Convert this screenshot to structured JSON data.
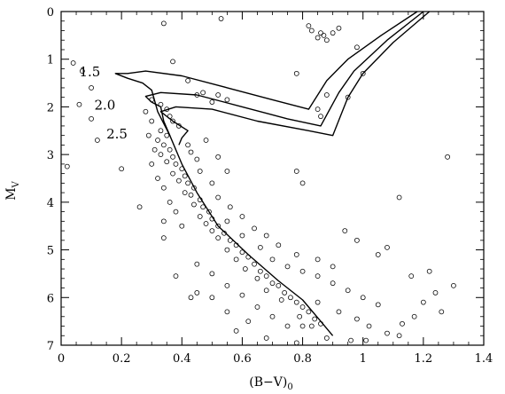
{
  "chart_data": {
    "type": "scatter",
    "title": "",
    "xlabel": "(B−V)",
    "xlabel_subscript": "0",
    "ylabel": "M",
    "ylabel_subscript": "V",
    "xlim": [
      0,
      1.4
    ],
    "ylim": [
      7,
      0
    ],
    "y_inverted": true,
    "grid": false,
    "x_ticks": [
      0,
      0.2,
      0.4,
      0.6,
      0.8,
      1,
      1.2,
      1.4
    ],
    "x_tick_labels": [
      "0",
      "0.2",
      "0.4",
      "0.6",
      "0.8",
      "1",
      "1.2",
      "1.4"
    ],
    "y_ticks": [
      0,
      1,
      2,
      3,
      4,
      5,
      6,
      7
    ],
    "y_tick_labels": [
      "0",
      "1",
      "2",
      "3",
      "4",
      "5",
      "6",
      "7"
    ],
    "isochrones": [
      {
        "label": "1.5",
        "points": [
          [
            1.18,
            0
          ],
          [
            1.06,
            0.5
          ],
          [
            0.95,
            1.0
          ],
          [
            0.88,
            1.45
          ],
          [
            0.82,
            2.05
          ],
          [
            0.7,
            1.85
          ],
          [
            0.55,
            1.6
          ],
          [
            0.4,
            1.35
          ],
          [
            0.28,
            1.25
          ],
          [
            0.22,
            1.3
          ],
          [
            0.18,
            1.3
          ],
          [
            0.22,
            1.4
          ],
          [
            0.27,
            1.5
          ],
          [
            0.3,
            1.65
          ],
          [
            0.32,
            2.1
          ],
          [
            0.36,
            2.6
          ],
          [
            0.4,
            3.2
          ],
          [
            0.45,
            3.8
          ],
          [
            0.52,
            4.5
          ],
          [
            0.62,
            5.1
          ],
          [
            0.72,
            5.65
          ],
          [
            0.8,
            6.05
          ],
          [
            0.86,
            6.5
          ],
          [
            0.9,
            6.8
          ]
        ]
      },
      {
        "label": "2.0",
        "points": [
          [
            1.2,
            0
          ],
          [
            1.08,
            0.6
          ],
          [
            0.97,
            1.25
          ],
          [
            0.92,
            1.7
          ],
          [
            0.86,
            2.4
          ],
          [
            0.75,
            2.25
          ],
          [
            0.6,
            2.0
          ],
          [
            0.45,
            1.75
          ],
          [
            0.33,
            1.7
          ],
          [
            0.28,
            1.78
          ],
          [
            0.3,
            1.9
          ],
          [
            0.33,
            2.0
          ],
          [
            0.34,
            2.3
          ],
          [
            0.36,
            2.6
          ]
        ]
      },
      {
        "label": "2.5",
        "points": [
          [
            1.22,
            0
          ],
          [
            1.1,
            0.65
          ],
          [
            1.0,
            1.3
          ],
          [
            0.95,
            1.8
          ],
          [
            0.9,
            2.6
          ],
          [
            0.82,
            2.5
          ],
          [
            0.65,
            2.3
          ],
          [
            0.5,
            2.05
          ],
          [
            0.38,
            2.0
          ],
          [
            0.33,
            2.1
          ],
          [
            0.37,
            2.3
          ],
          [
            0.42,
            2.5
          ],
          [
            0.4,
            2.65
          ],
          [
            0.39,
            2.8
          ]
        ]
      }
    ],
    "series": [
      {
        "values": [
          [
            0.04,
            1.08
          ],
          [
            0.07,
            1.25
          ],
          [
            0.1,
            1.6
          ],
          [
            0.06,
            1.95
          ],
          [
            0.1,
            2.25
          ],
          [
            0.12,
            2.7
          ],
          [
            0.02,
            3.25
          ],
          [
            0.2,
            3.3
          ],
          [
            0.26,
            4.1
          ],
          [
            0.34,
            4.4
          ],
          [
            0.34,
            4.75
          ],
          [
            0.38,
            5.55
          ],
          [
            0.43,
            6.0
          ],
          [
            0.37,
            1.05
          ],
          [
            0.42,
            1.45
          ],
          [
            0.45,
            1.75
          ],
          [
            0.3,
            1.85
          ],
          [
            0.33,
            1.95
          ],
          [
            0.35,
            2.05
          ],
          [
            0.36,
            2.2
          ],
          [
            0.37,
            2.3
          ],
          [
            0.39,
            2.4
          ],
          [
            0.33,
            2.5
          ],
          [
            0.35,
            2.6
          ],
          [
            0.32,
            2.7
          ],
          [
            0.34,
            2.8
          ],
          [
            0.36,
            2.9
          ],
          [
            0.33,
            3.0
          ],
          [
            0.37,
            3.05
          ],
          [
            0.35,
            3.15
          ],
          [
            0.38,
            3.2
          ],
          [
            0.4,
            3.3
          ],
          [
            0.37,
            3.4
          ],
          [
            0.41,
            3.45
          ],
          [
            0.39,
            3.55
          ],
          [
            0.42,
            3.6
          ],
          [
            0.44,
            3.7
          ],
          [
            0.41,
            3.8
          ],
          [
            0.43,
            3.85
          ],
          [
            0.46,
            3.95
          ],
          [
            0.44,
            4.05
          ],
          [
            0.47,
            4.1
          ],
          [
            0.49,
            4.2
          ],
          [
            0.46,
            4.3
          ],
          [
            0.5,
            4.35
          ],
          [
            0.48,
            4.45
          ],
          [
            0.52,
            4.5
          ],
          [
            0.5,
            4.6
          ],
          [
            0.54,
            4.65
          ],
          [
            0.52,
            4.75
          ],
          [
            0.56,
            4.8
          ],
          [
            0.58,
            4.9
          ],
          [
            0.55,
            5.0
          ],
          [
            0.6,
            5.05
          ],
          [
            0.62,
            5.15
          ],
          [
            0.58,
            5.2
          ],
          [
            0.64,
            5.3
          ],
          [
            0.61,
            5.4
          ],
          [
            0.66,
            5.45
          ],
          [
            0.68,
            5.55
          ],
          [
            0.65,
            5.6
          ],
          [
            0.7,
            5.7
          ],
          [
            0.72,
            5.75
          ],
          [
            0.68,
            5.85
          ],
          [
            0.74,
            5.9
          ],
          [
            0.76,
            6.0
          ],
          [
            0.73,
            6.05
          ],
          [
            0.78,
            6.1
          ],
          [
            0.8,
            6.2
          ],
          [
            0.82,
            6.3
          ],
          [
            0.79,
            6.4
          ],
          [
            0.84,
            6.45
          ],
          [
            0.86,
            6.55
          ],
          [
            0.83,
            6.6
          ],
          [
            0.55,
            4.4
          ],
          [
            0.6,
            4.7
          ],
          [
            0.66,
            4.95
          ],
          [
            0.7,
            5.2
          ],
          [
            0.75,
            5.35
          ],
          [
            0.8,
            5.45
          ],
          [
            0.85,
            5.55
          ],
          [
            0.9,
            5.7
          ],
          [
            0.95,
            5.85
          ],
          [
            1.0,
            6.0
          ],
          [
            1.05,
            6.15
          ],
          [
            0.92,
            6.3
          ],
          [
            0.98,
            6.45
          ],
          [
            1.02,
            6.6
          ],
          [
            1.08,
            6.75
          ],
          [
            0.96,
            6.9
          ],
          [
            0.45,
            5.3
          ],
          [
            0.5,
            5.5
          ],
          [
            0.55,
            5.75
          ],
          [
            0.6,
            5.95
          ],
          [
            0.65,
            6.2
          ],
          [
            0.7,
            6.4
          ],
          [
            0.75,
            6.6
          ],
          [
            0.62,
            6.5
          ],
          [
            0.55,
            6.3
          ],
          [
            0.5,
            6.0
          ],
          [
            0.45,
            5.9
          ],
          [
            0.58,
            6.7
          ],
          [
            0.68,
            6.85
          ],
          [
            0.78,
            6.95
          ],
          [
            0.88,
            6.85
          ],
          [
            0.72,
            4.9
          ],
          [
            0.78,
            5.1
          ],
          [
            0.85,
            5.2
          ],
          [
            0.9,
            5.35
          ],
          [
            0.68,
            4.7
          ],
          [
            0.64,
            4.55
          ],
          [
            0.6,
            4.3
          ],
          [
            0.56,
            4.1
          ],
          [
            0.52,
            3.9
          ],
          [
            0.5,
            3.6
          ],
          [
            0.46,
            3.35
          ],
          [
            0.45,
            3.1
          ],
          [
            0.43,
            2.95
          ],
          [
            0.42,
            2.8
          ],
          [
            0.3,
            2.3
          ],
          [
            0.28,
            2.1
          ],
          [
            0.29,
            2.6
          ],
          [
            0.31,
            2.9
          ],
          [
            0.3,
            3.2
          ],
          [
            0.32,
            3.5
          ],
          [
            0.34,
            3.7
          ],
          [
            0.36,
            4.0
          ],
          [
            0.38,
            4.2
          ],
          [
            0.4,
            4.5
          ],
          [
            0.87,
            0.5
          ],
          [
            0.9,
            0.45
          ],
          [
            0.85,
            0.55
          ],
          [
            0.88,
            0.6
          ],
          [
            0.83,
            0.4
          ],
          [
            0.92,
            0.35
          ],
          [
            0.82,
            0.3
          ],
          [
            0.86,
            0.45
          ],
          [
            0.98,
            0.75
          ],
          [
            1.0,
            1.3
          ],
          [
            0.88,
            1.75
          ],
          [
            0.78,
            1.3
          ],
          [
            0.95,
            1.8
          ],
          [
            0.53,
            0.15
          ],
          [
            0.85,
            2.05
          ],
          [
            0.86,
            2.2
          ],
          [
            0.55,
            1.85
          ],
          [
            0.52,
            1.75
          ],
          [
            0.5,
            1.9
          ],
          [
            0.47,
            1.7
          ],
          [
            0.34,
            0.25
          ],
          [
            0.48,
            2.7
          ],
          [
            0.52,
            3.05
          ],
          [
            0.55,
            3.35
          ],
          [
            0.78,
            3.35
          ],
          [
            0.8,
            3.6
          ],
          [
            0.94,
            4.6
          ],
          [
            0.98,
            4.8
          ],
          [
            1.05,
            5.1
          ],
          [
            1.08,
            4.95
          ],
          [
            1.12,
            3.9
          ],
          [
            1.28,
            3.05
          ],
          [
            1.16,
            5.55
          ],
          [
            1.22,
            5.45
          ],
          [
            1.24,
            5.9
          ],
          [
            1.2,
            6.1
          ],
          [
            1.26,
            6.3
          ],
          [
            1.3,
            5.75
          ],
          [
            1.17,
            6.4
          ],
          [
            1.13,
            6.55
          ],
          [
            1.12,
            6.8
          ],
          [
            1.01,
            6.9
          ],
          [
            0.85,
            6.1
          ],
          [
            0.8,
            6.6
          ]
        ]
      }
    ]
  }
}
